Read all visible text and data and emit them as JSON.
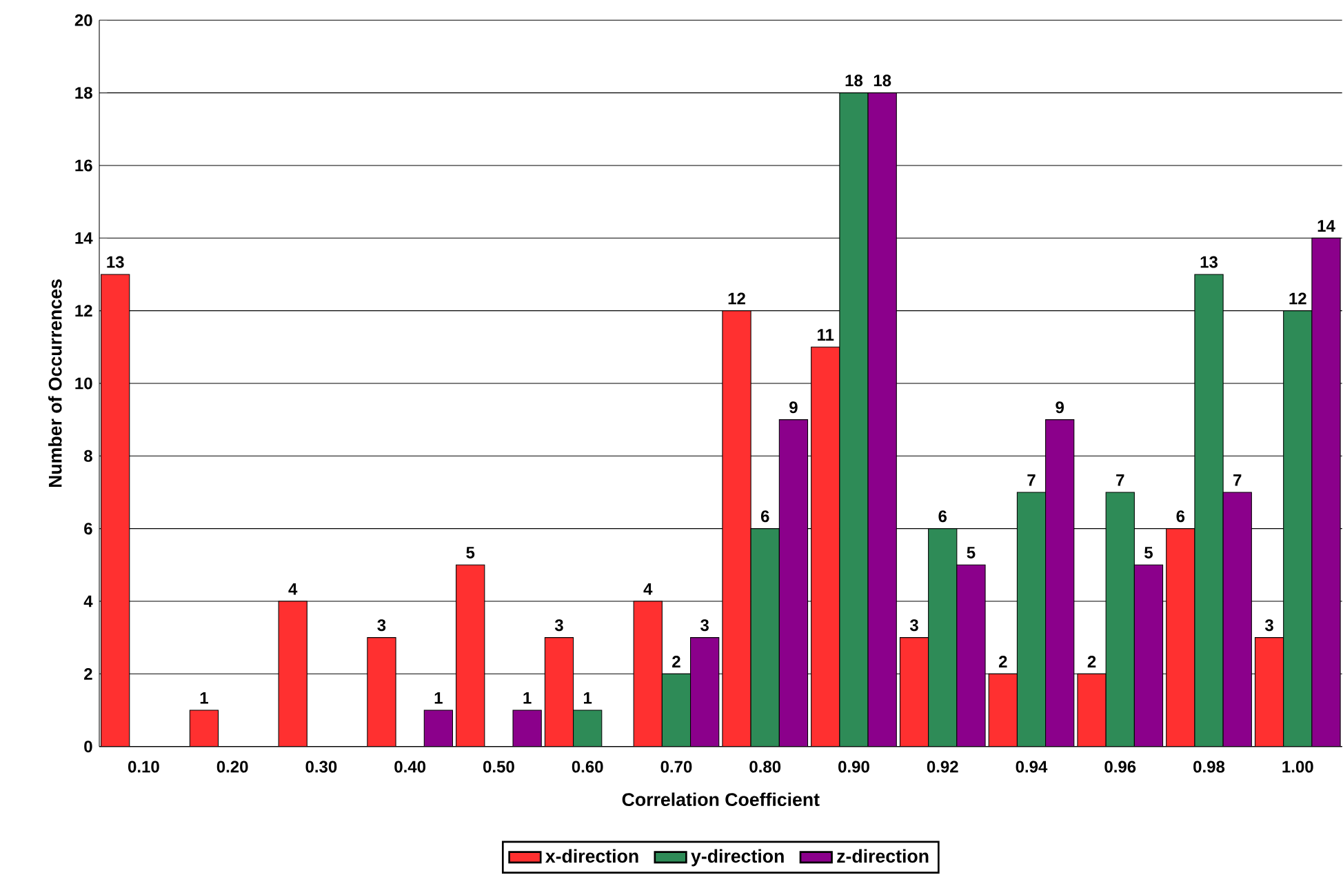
{
  "chart_data": {
    "type": "bar",
    "xlabel": "Correlation Coefficient",
    "ylabel": "Number of Occurrences",
    "categories": [
      "0.10",
      "0.20",
      "0.30",
      "0.40",
      "0.50",
      "0.60",
      "0.70",
      "0.80",
      "0.90",
      "0.92",
      "0.94",
      "0.96",
      "0.98",
      "1.00"
    ],
    "series": [
      {
        "name": "x-direction",
        "color": "#ff3030",
        "values": [
          13,
          1,
          4,
          3,
          5,
          3,
          4,
          12,
          11,
          3,
          2,
          2,
          6,
          3
        ]
      },
      {
        "name": "y-direction",
        "color": "#2e8b57",
        "values": [
          null,
          null,
          null,
          null,
          null,
          1,
          2,
          6,
          18,
          6,
          7,
          7,
          13,
          12
        ]
      },
      {
        "name": "z-direction",
        "color": "#8b008b",
        "values": [
          null,
          null,
          null,
          1,
          1,
          null,
          3,
          9,
          18,
          5,
          9,
          5,
          7,
          14
        ]
      }
    ],
    "ylim": [
      0,
      20
    ],
    "yticks": [
      0,
      2,
      4,
      6,
      8,
      10,
      12,
      14,
      16,
      18,
      20
    ],
    "grid": "y",
    "legend": "bottom",
    "data_labels": true
  }
}
